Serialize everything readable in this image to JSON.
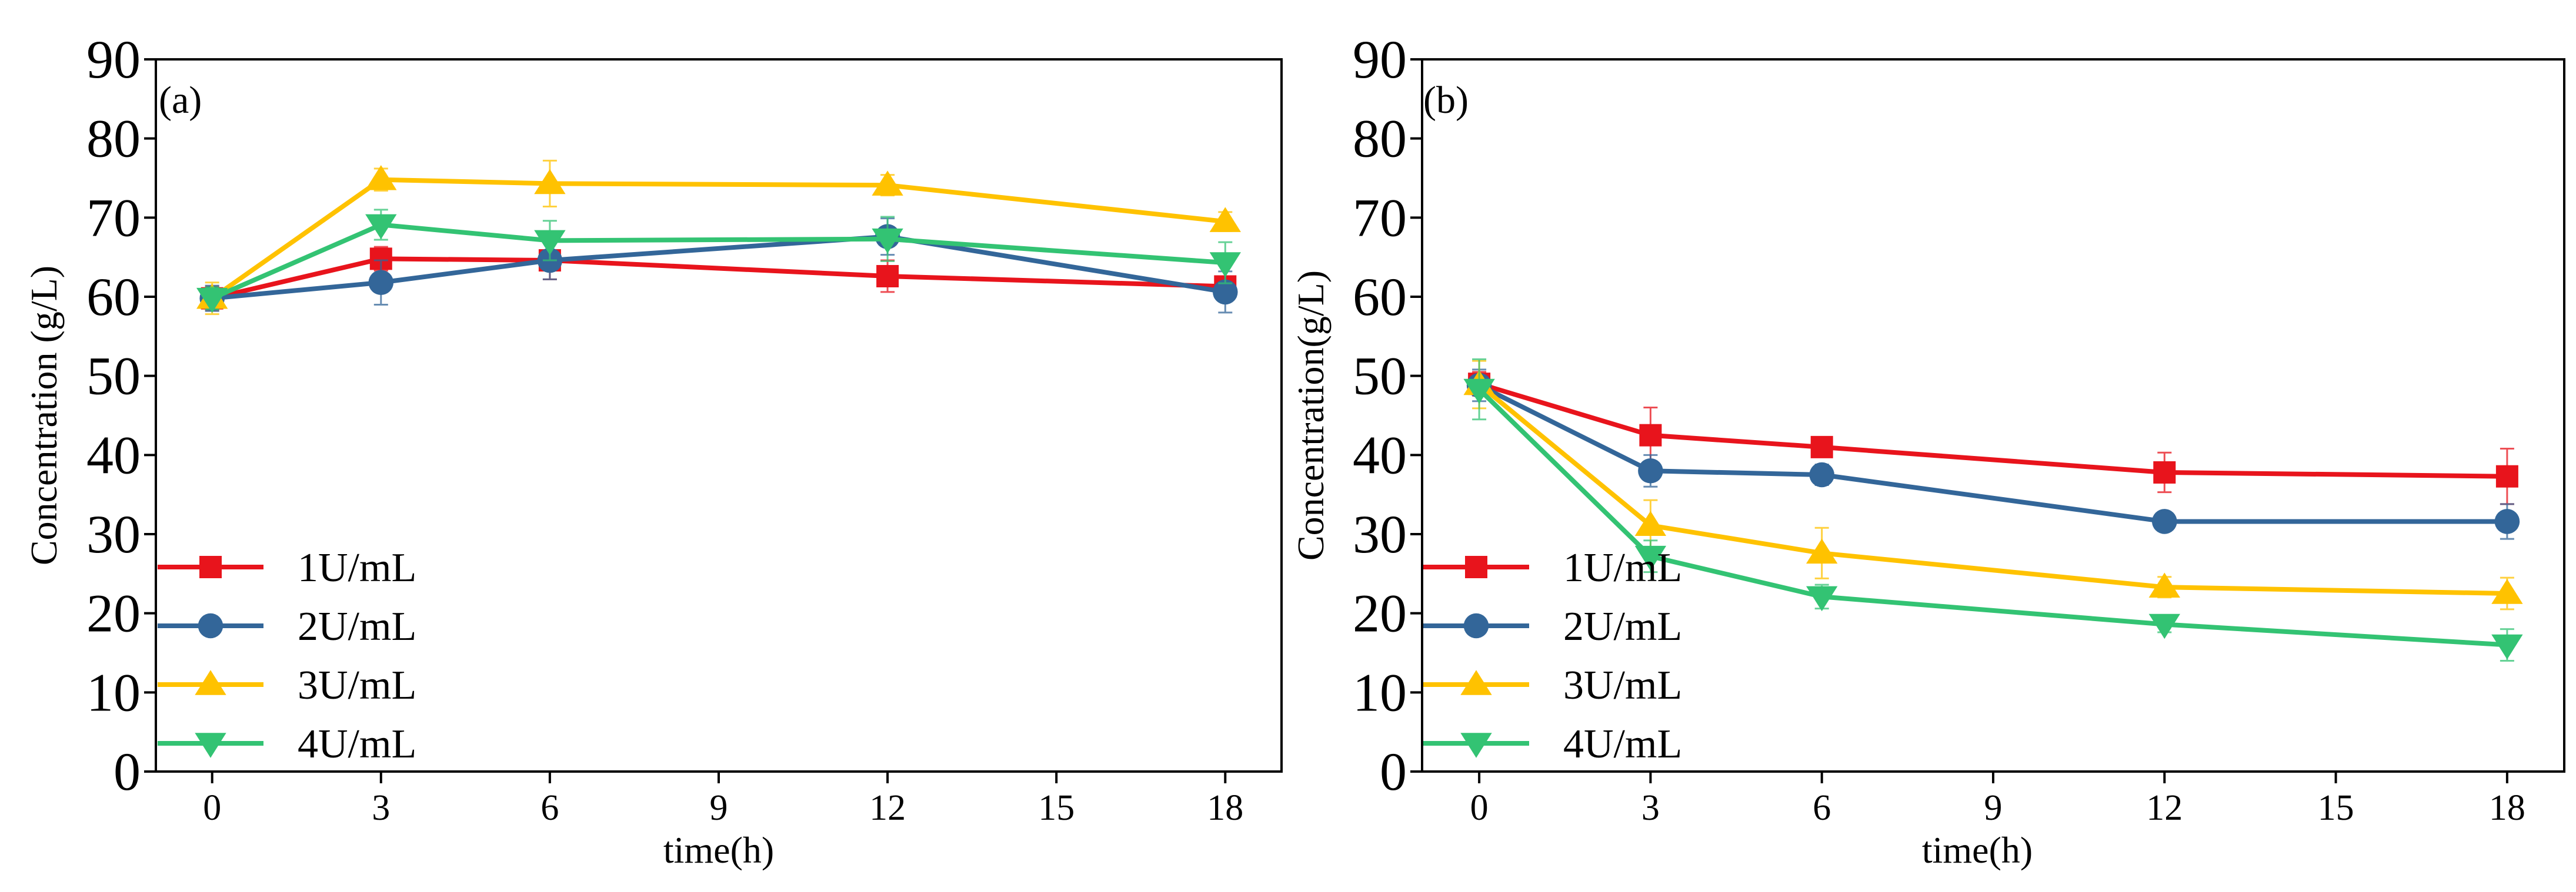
{
  "figure_title": "",
  "chart_data": [
    {
      "type": "line",
      "panel_label": "(a)",
      "title": "",
      "xlabel": "time(h)",
      "ylabel": "Concentration (g/L)",
      "xlim": [
        -1,
        19
      ],
      "ylim": [
        0,
        90
      ],
      "xticks": [
        0,
        3,
        6,
        9,
        12,
        15,
        18
      ],
      "yticks": [
        0,
        10,
        20,
        30,
        40,
        50,
        60,
        70,
        80,
        90
      ],
      "grid": false,
      "legend_position": "bottom-left",
      "x": [
        0,
        3,
        6,
        12,
        18
      ],
      "series": [
        {
          "name": "1U/mL",
          "color": "#e8141c",
          "marker": "square",
          "values": [
            59.8,
            64.8,
            64.6,
            62.6,
            61.3
          ],
          "errors": [
            1.5,
            1.5,
            2.4,
            2.0,
            1.3
          ]
        },
        {
          "name": "2U/mL",
          "color": "#336699",
          "marker": "circle",
          "values": [
            59.8,
            61.8,
            64.6,
            67.6,
            60.6
          ],
          "errors": [
            1.6,
            2.8,
            2.4,
            2.3,
            2.6
          ]
        },
        {
          "name": "3U/mL",
          "color": "#ffc200",
          "marker": "triangle-up",
          "values": [
            59.8,
            74.8,
            74.3,
            74.1,
            69.5
          ],
          "errors": [
            2.0,
            1.4,
            2.9,
            1.3,
            1.2
          ]
        },
        {
          "name": "4U/mL",
          "color": "#33c373",
          "marker": "triangle-down",
          "values": [
            59.8,
            69.1,
            67.1,
            67.3,
            64.3
          ],
          "errors": [
            1.4,
            1.9,
            2.5,
            2.8,
            2.6
          ]
        }
      ]
    },
    {
      "type": "line",
      "panel_label": "(b)",
      "title": "",
      "xlabel": "time(h)",
      "ylabel": "Concentration(g/L)",
      "xlim": [
        -1,
        19
      ],
      "ylim": [
        0,
        90
      ],
      "xticks": [
        0,
        3,
        6,
        9,
        12,
        15,
        18
      ],
      "yticks": [
        0,
        10,
        20,
        30,
        40,
        50,
        60,
        70,
        80,
        90
      ],
      "grid": false,
      "legend_position": "bottom-left",
      "x": [
        0,
        3,
        6,
        12,
        18
      ],
      "series": [
        {
          "name": "1U/mL",
          "color": "#e8141c",
          "marker": "square",
          "values": [
            49.0,
            42.5,
            41.0,
            37.8,
            37.3
          ],
          "errors": [
            1.5,
            3.5,
            1.0,
            2.5,
            3.5
          ]
        },
        {
          "name": "2U/mL",
          "color": "#336699",
          "marker": "circle",
          "values": [
            48.8,
            38.0,
            37.5,
            31.6,
            31.6
          ],
          "errors": [
            2.0,
            2.0,
            1.3,
            1.2,
            2.2
          ]
        },
        {
          "name": "3U/mL",
          "color": "#ffc200",
          "marker": "triangle-up",
          "values": [
            48.9,
            31.1,
            27.6,
            23.3,
            22.5
          ],
          "errors": [
            3.0,
            3.2,
            3.2,
            1.3,
            2.0
          ]
        },
        {
          "name": "4U/mL",
          "color": "#33c373",
          "marker": "triangle-down",
          "values": [
            48.3,
            27.2,
            22.1,
            18.6,
            16.0
          ],
          "errors": [
            3.8,
            2.0,
            1.5,
            1.0,
            2.0
          ]
        }
      ]
    }
  ]
}
